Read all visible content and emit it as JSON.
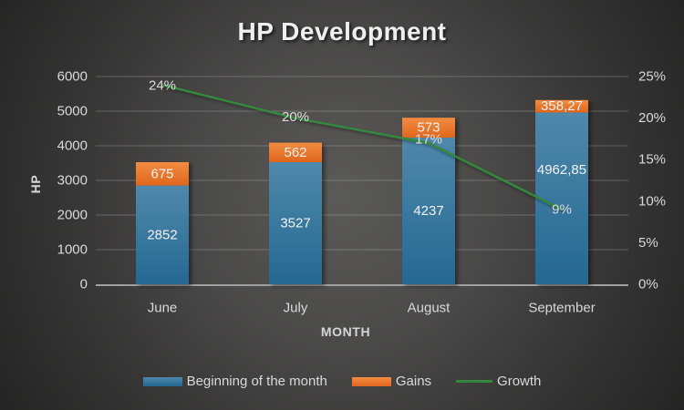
{
  "title": "HP Development",
  "chart_data": {
    "type": "bar",
    "subtype": "stacked-bar-with-line",
    "title": "HP Development",
    "categories": [
      "June",
      "July",
      "August",
      "September"
    ],
    "series": [
      {
        "name": "Beginning of the month",
        "type": "bar",
        "stack": true,
        "axis": "left",
        "values": [
          2852,
          3527,
          4237,
          4962.85
        ],
        "labels": [
          "2852",
          "3527",
          "4237",
          "4962,85"
        ],
        "color": "#2e75a0",
        "color_top": "#4f88ab",
        "color_bottom": "#256892"
      },
      {
        "name": "Gains",
        "type": "bar",
        "stack": true,
        "axis": "left",
        "values": [
          675,
          562,
          573,
          358.27
        ],
        "labels": [
          "675",
          "562",
          "573",
          "358,27"
        ],
        "color": "#ed7d31",
        "color_top": "#f28c42",
        "color_bottom": "#e0661c"
      },
      {
        "name": "Growth",
        "type": "line",
        "axis": "right",
        "values": [
          24,
          20,
          17,
          9
        ],
        "labels": [
          "24%",
          "20%",
          "17%",
          "9%"
        ],
        "color": "#35873c"
      }
    ],
    "left_axis": {
      "title": "HP",
      "min": 0,
      "max": 6000,
      "step": 1000,
      "ticks": [
        "0",
        "1000",
        "2000",
        "3000",
        "4000",
        "5000",
        "6000"
      ]
    },
    "right_axis": {
      "min": 0,
      "max": 25,
      "step": 5,
      "ticks": [
        "0%",
        "5%",
        "10%",
        "15%",
        "20%",
        "25%"
      ]
    },
    "x_axis": {
      "title": "MONTH"
    },
    "grid": true,
    "legend_position": "bottom"
  },
  "colors": {
    "text": "#d9d9d9",
    "bar_label": "#f2f2f2",
    "grid": "rgba(255,255,255,0.22)",
    "axis_line": "#a0a0a0"
  }
}
